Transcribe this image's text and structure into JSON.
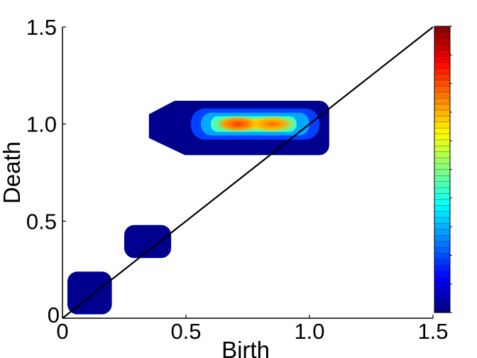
{
  "chart_data": {
    "type": "heatmap",
    "title": "",
    "xlabel": "Birth",
    "ylabel": "Death",
    "xlim": [
      0,
      1.5
    ],
    "ylim": [
      0,
      1.5
    ],
    "xticks": [
      0,
      0.5,
      1.0,
      1.5
    ],
    "xtick_labels": [
      "0",
      "0.5",
      "1.0",
      "1.5"
    ],
    "yticks": [
      0,
      0.5,
      1.0,
      1.5
    ],
    "ytick_labels": [
      "0",
      "0.5",
      "1.0",
      "1.5"
    ],
    "diagonal": {
      "from": [
        0,
        0
      ],
      "to": [
        1.5,
        1.5
      ]
    },
    "grid": false,
    "colorbar": {
      "placement": "right",
      "colormap": "jet",
      "levels": 48,
      "labels": []
    },
    "regions": [
      {
        "name": "",
        "birth_range": [
          0.02,
          0.2
        ],
        "death_range": [
          0.02,
          0.24
        ]
      },
      {
        "name": "",
        "birth_range": [
          0.25,
          0.44
        ],
        "death_range": [
          0.31,
          0.48
        ]
      },
      {
        "name": "",
        "birth_range": [
          0.35,
          1.08
        ],
        "death_range": [
          0.84,
          1.12
        ]
      }
    ],
    "peaks": [
      {
        "birth": 0.71,
        "death": 1.0,
        "intensity": 0.9
      },
      {
        "birth": 0.85,
        "death": 1.0,
        "intensity": 0.8
      }
    ]
  }
}
